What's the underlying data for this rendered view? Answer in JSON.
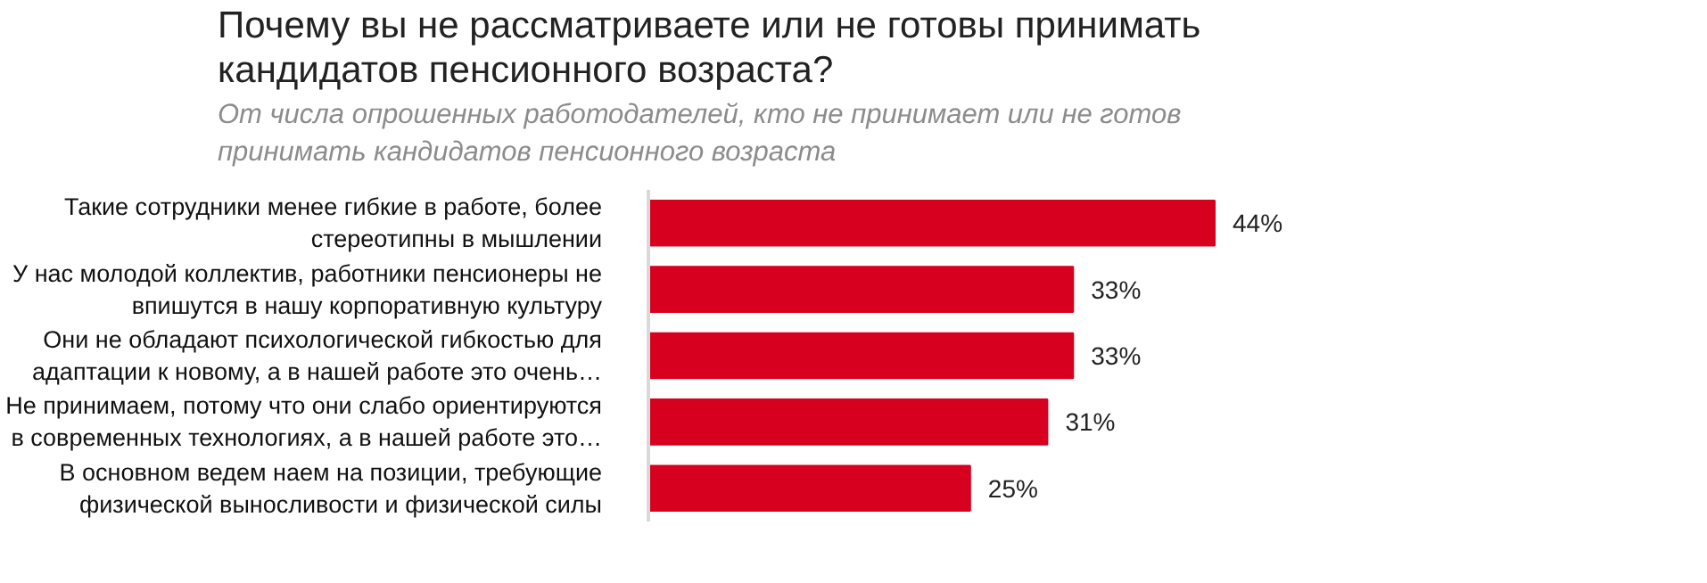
{
  "chart_data": {
    "type": "bar",
    "orientation": "horizontal",
    "title": "Почему вы не рассматриваете или не готовы принимать\nкандидатов пенсионного возраста?",
    "subtitle": "От числа опрошенных работодателей, кто не принимает или не готов\nпринимать кандидатов пенсионного возраста",
    "categories": [
      "Такие сотрудники менее гибкие в работе, более\nстереотипны в мышлении",
      "У нас молодой коллектив, работники пенсионеры не\nвпишутся в нашу корпоративную культуру",
      "Они не обладают психологической гибкостью для\nадаптации к новому, а в нашей работе это очень…",
      "Не принимаем, потому что они слабо ориентируются\nв современных технологиях, а в нашей работе это…",
      "В основном ведем наем на позиции, требующие\nфизической выносливости и физической силы"
    ],
    "values": [
      44,
      33,
      33,
      31,
      25
    ],
    "value_labels": [
      "44%",
      "33%",
      "33%",
      "31%",
      "25%"
    ],
    "color": "#d7001e",
    "tick_labels": "y"
  }
}
